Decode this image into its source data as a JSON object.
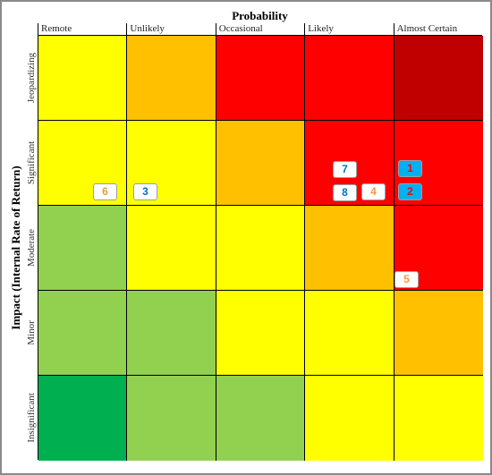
{
  "matrix": {
    "x_axis_title": "Probability",
    "y_axis_title": "Impact (Internal Rate of Return)",
    "columns": [
      "Remote",
      "Unlikely",
      "Occasional",
      "Likely",
      "Almost Certain"
    ],
    "rows": [
      "Jeopardizing",
      "Significant",
      "Moderate",
      "Minor",
      "Insignificant"
    ],
    "cell_colors": [
      [
        "#ffff00",
        "#ffc000",
        "#ff0000",
        "#ff0000",
        "#c00000"
      ],
      [
        "#ffff00",
        "#ffff00",
        "#ffc000",
        "#ff0000",
        "#ff0000"
      ],
      [
        "#92d050",
        "#ffff00",
        "#ffff00",
        "#ffc000",
        "#ff0000"
      ],
      [
        "#92d050",
        "#92d050",
        "#ffff00",
        "#ffff00",
        "#ffc000"
      ],
      [
        "#00b050",
        "#92d050",
        "#92d050",
        "#ffff00",
        "#ffff00"
      ]
    ]
  },
  "markers": [
    {
      "label": "1",
      "row": 1,
      "col": 4,
      "bg": "#00b0f0",
      "fg": "#ff0000"
    },
    {
      "label": "2",
      "row": 1,
      "col": 4,
      "bg": "#00b0f0",
      "fg": "#ff0000"
    },
    {
      "label": "3",
      "row": 1,
      "col": 1,
      "bg": "#ffffff",
      "fg": "#0070c0"
    },
    {
      "label": "4",
      "row": 1,
      "col": 3,
      "bg": "#ffffff",
      "fg": "#f79646"
    },
    {
      "label": "5",
      "row": 2,
      "col": 4,
      "bg": "#ffffff",
      "fg": "#f79646"
    },
    {
      "label": "6",
      "row": 1,
      "col": 0,
      "bg": "#ffffff",
      "fg": "#e3a03a"
    },
    {
      "label": "7",
      "row": 1,
      "col": 3,
      "bg": "#ffffff",
      "fg": "#0070c0"
    },
    {
      "label": "8",
      "row": 1,
      "col": 3,
      "bg": "#ffffff",
      "fg": "#0070c0"
    }
  ]
}
